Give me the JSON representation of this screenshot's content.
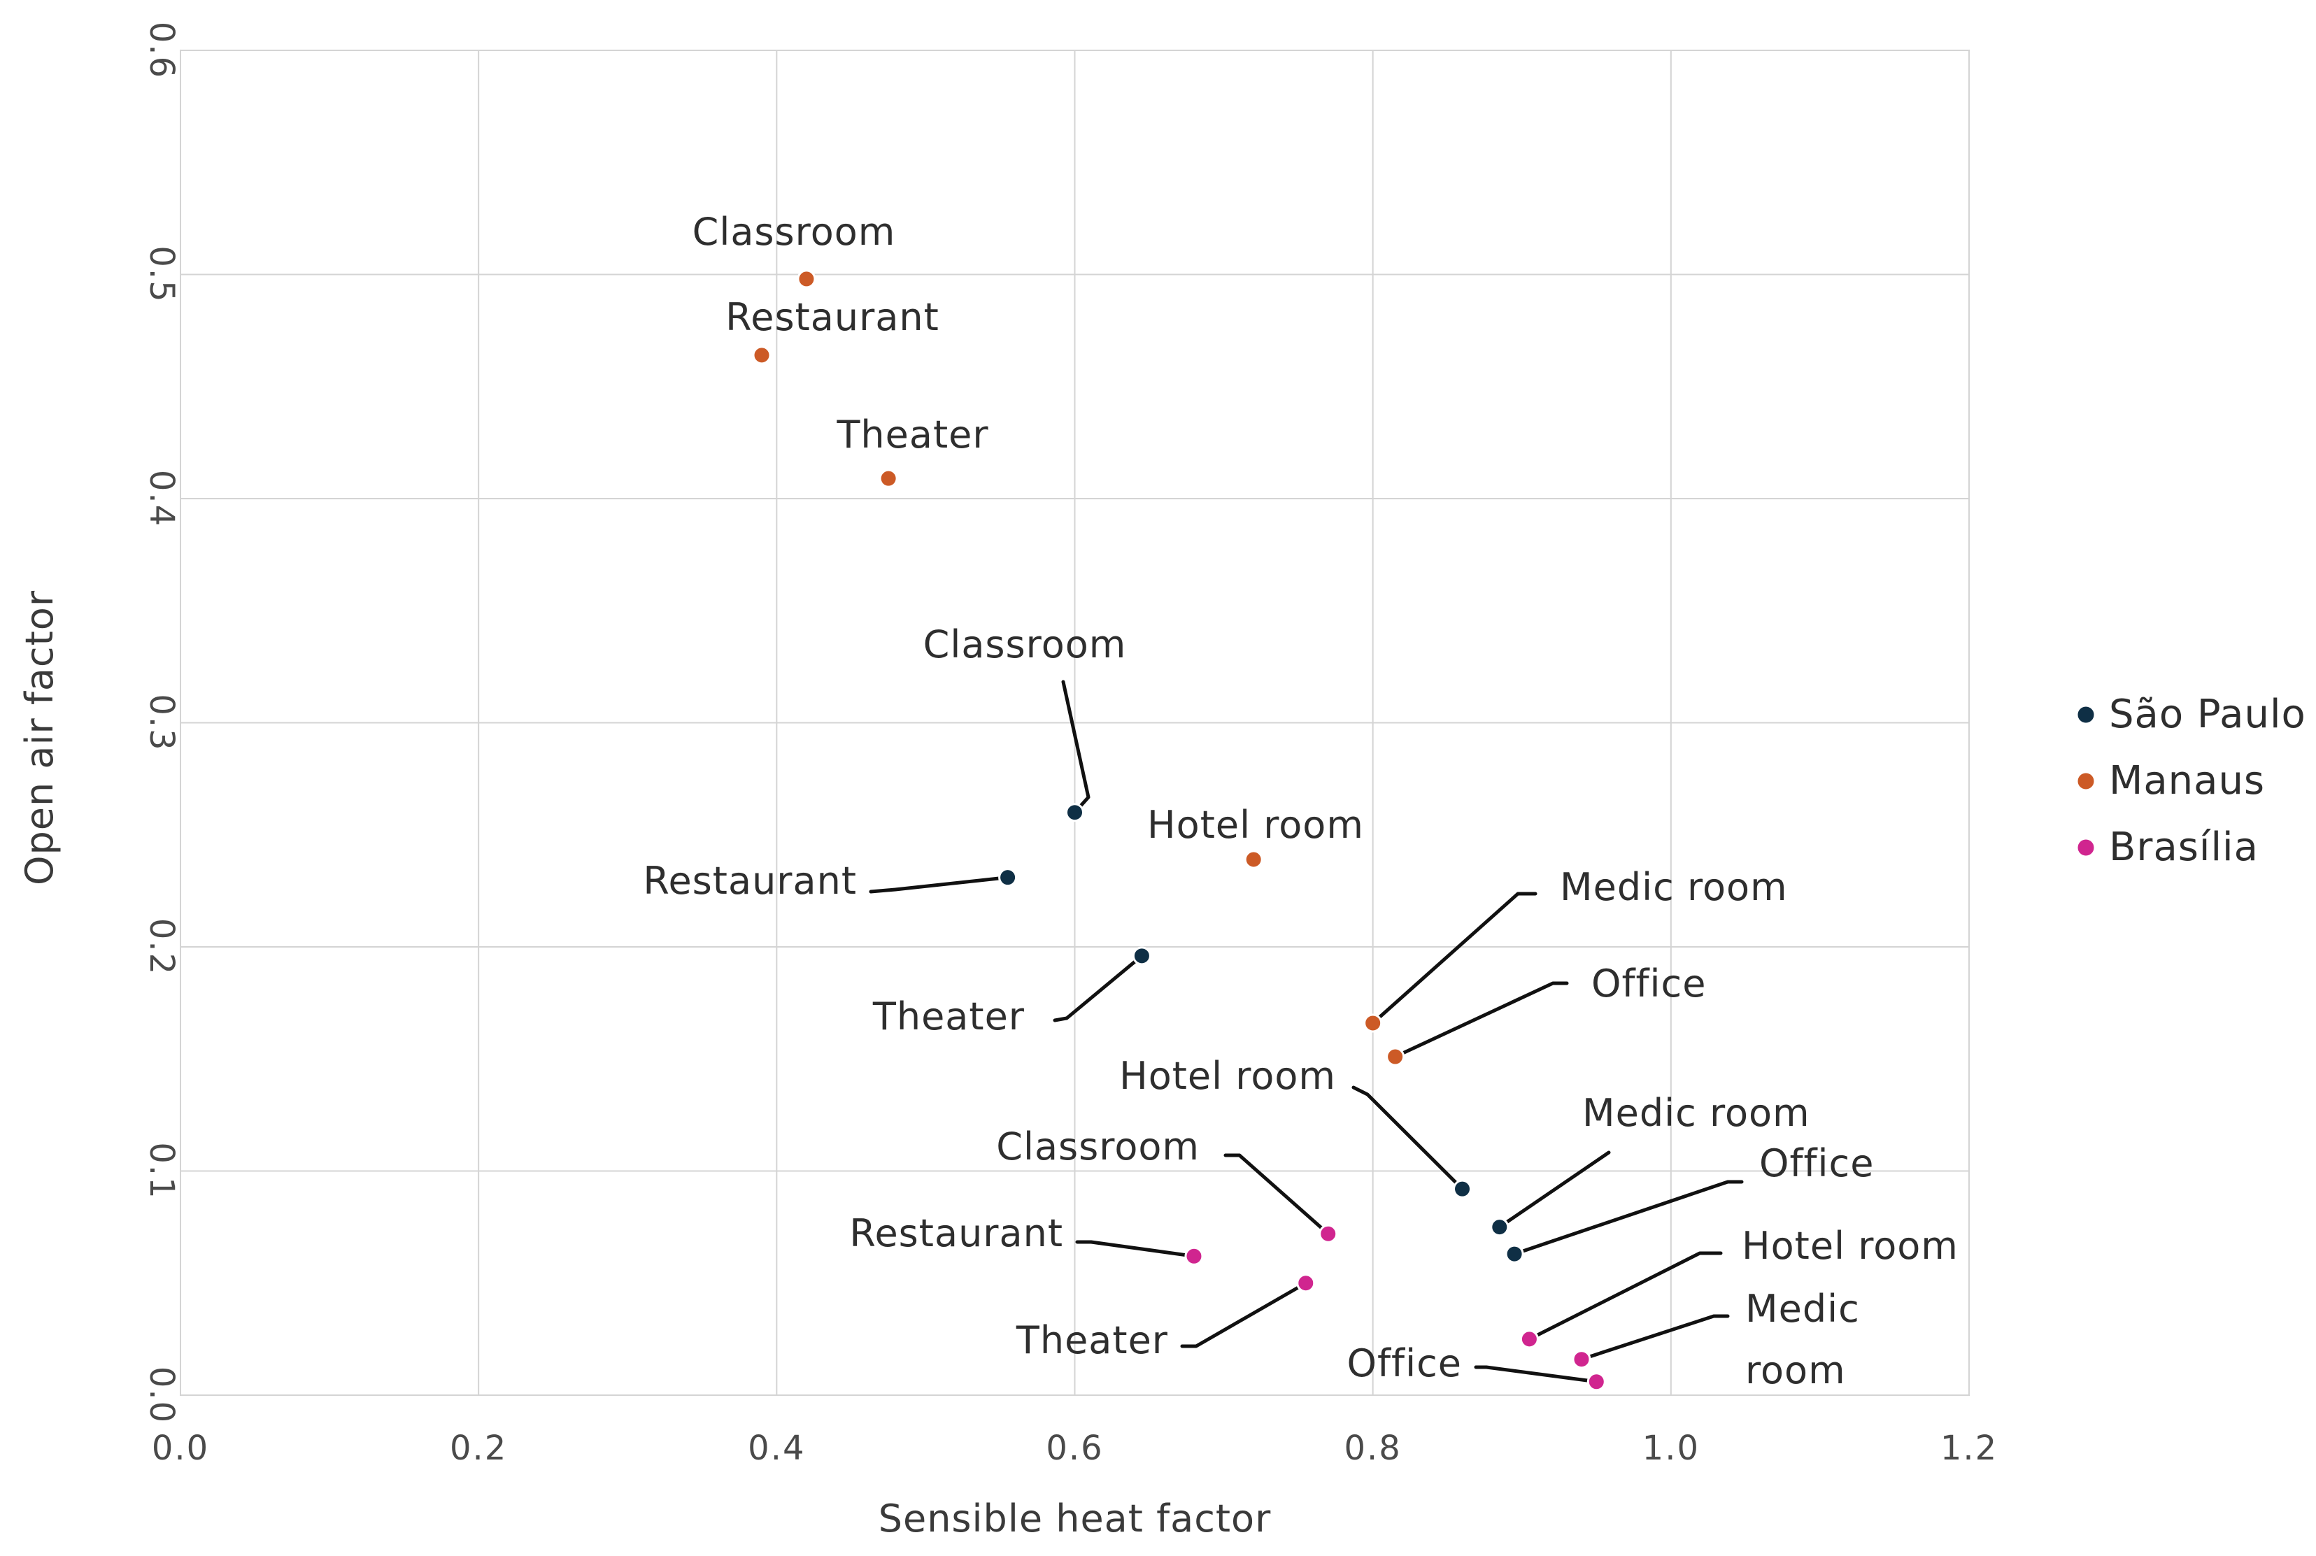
{
  "chart_data": {
    "type": "scatter",
    "xlabel": "Sensible heat factor",
    "ylabel": "Open air factor",
    "xlim": [
      0.0,
      1.2
    ],
    "ylim": [
      0.0,
      0.6
    ],
    "xticks": [
      "0.0",
      "0.2",
      "0.4",
      "0.6",
      "0.8",
      "1.0",
      "1.2"
    ],
    "yticks": [
      "0.0",
      "0.1",
      "0.2",
      "0.3",
      "0.4",
      "0.5",
      "0.6"
    ],
    "grid": true,
    "legend_position": "right",
    "series": [
      {
        "name": "São Paulo",
        "color": "#0f2f45",
        "points": [
          {
            "label": "Classroom",
            "x": 0.6,
            "y": 0.26
          },
          {
            "label": "Restaurant",
            "x": 0.555,
            "y": 0.231
          },
          {
            "label": "Theater",
            "x": 0.645,
            "y": 0.196
          },
          {
            "label": "Hotel room",
            "x": 0.86,
            "y": 0.092
          },
          {
            "label": "Medic room",
            "x": 0.885,
            "y": 0.075
          },
          {
            "label": "Office",
            "x": 0.895,
            "y": 0.063
          }
        ]
      },
      {
        "name": "Manaus",
        "color": "#cc5a26",
        "points": [
          {
            "label": "Classroom",
            "x": 0.42,
            "y": 0.498
          },
          {
            "label": "Restaurant",
            "x": 0.39,
            "y": 0.464
          },
          {
            "label": "Theater",
            "x": 0.475,
            "y": 0.409
          },
          {
            "label": "Hotel room",
            "x": 0.72,
            "y": 0.239
          },
          {
            "label": "Medic room",
            "x": 0.8,
            "y": 0.166
          },
          {
            "label": "Office",
            "x": 0.815,
            "y": 0.151
          }
        ]
      },
      {
        "name": "Brasília",
        "color": "#d0258f",
        "points": [
          {
            "label": "Classroom",
            "x": 0.77,
            "y": 0.072
          },
          {
            "label": "Restaurant",
            "x": 0.68,
            "y": 0.062
          },
          {
            "label": "Theater",
            "x": 0.755,
            "y": 0.05
          },
          {
            "label": "Hotel room",
            "x": 0.905,
            "y": 0.025
          },
          {
            "label": "Medic room",
            "x": 0.94,
            "y": 0.016
          },
          {
            "label": "Office",
            "x": 0.95,
            "y": 0.006
          }
        ]
      }
    ]
  }
}
